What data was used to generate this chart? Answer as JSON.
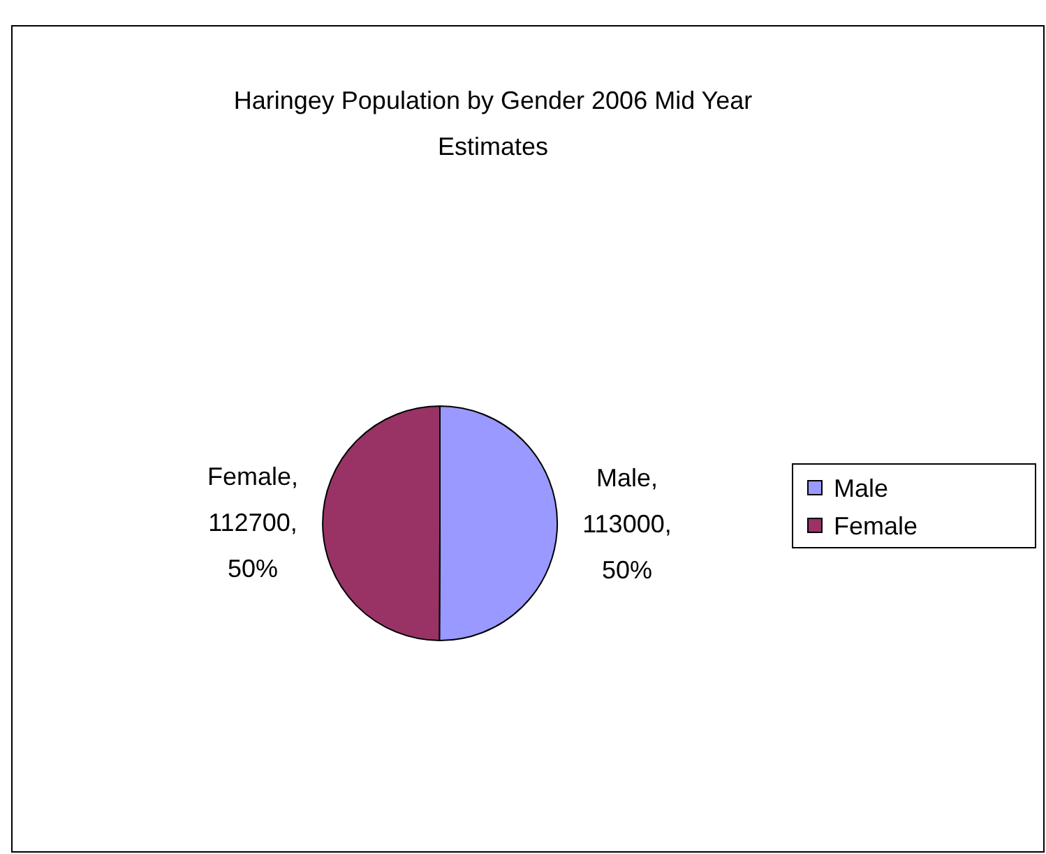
{
  "chart_data": {
    "type": "pie",
    "title": "Haringey Population by Gender  2006 Mid Year Estimates",
    "categories": [
      "Male",
      "Female"
    ],
    "values": [
      113000,
      112700
    ],
    "colors": [
      "#9999ff",
      "#993366"
    ],
    "value_labels": [
      "Male, 113000, 50%",
      "Female, 112700, 50%"
    ],
    "legend": "right"
  }
}
